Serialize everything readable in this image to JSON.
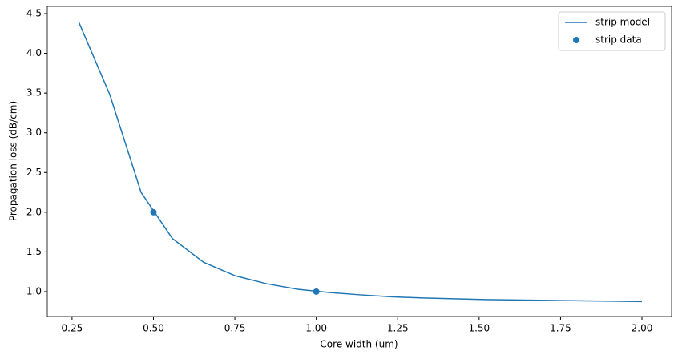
{
  "chart_data": {
    "type": "line",
    "x_label": "Core width (um)",
    "y_label": "Propagation loss (dB/cm)",
    "xlim": [
      0.174,
      2.091
    ],
    "ylim": [
      0.687,
      4.591
    ],
    "xticks": [
      {
        "value": 0.25,
        "label": "0.25"
      },
      {
        "value": 0.5,
        "label": "0.50"
      },
      {
        "value": 0.75,
        "label": "0.75"
      },
      {
        "value": 1.0,
        "label": "1.00"
      },
      {
        "value": 1.25,
        "label": "1.25"
      },
      {
        "value": 1.5,
        "label": "1.50"
      },
      {
        "value": 1.75,
        "label": "1.75"
      },
      {
        "value": 2.0,
        "label": "2.00"
      }
    ],
    "yticks": [
      {
        "value": 1.0,
        "label": "1.0"
      },
      {
        "value": 1.5,
        "label": "1.5"
      },
      {
        "value": 2.0,
        "label": "2.0"
      },
      {
        "value": 2.5,
        "label": "2.5"
      },
      {
        "value": 3.0,
        "label": "3.0"
      },
      {
        "value": 3.5,
        "label": "3.5"
      },
      {
        "value": 4.0,
        "label": "4.0"
      },
      {
        "value": 4.5,
        "label": "4.5"
      }
    ],
    "grid": false,
    "legend": "upper-right",
    "series": [
      {
        "name": "strip model",
        "type": "line",
        "color": "#1f77b4",
        "x": [
          0.27,
          0.366,
          0.462,
          0.558,
          0.654,
          0.751,
          0.847,
          0.943,
          1.039,
          1.135,
          1.231,
          1.327,
          1.423,
          1.519,
          1.616,
          1.712,
          1.808,
          1.904,
          2.0
        ],
        "values": [
          4.4,
          3.48,
          2.25,
          1.67,
          1.37,
          1.2,
          1.1,
          1.03,
          0.99,
          0.96,
          0.935,
          0.92,
          0.91,
          0.9,
          0.895,
          0.89,
          0.885,
          0.88,
          0.875
        ]
      },
      {
        "name": "strip data",
        "type": "scatter",
        "color": "#1f77b4",
        "x": [
          0.5,
          1.0
        ],
        "values": [
          2.0,
          1.0
        ]
      }
    ]
  }
}
